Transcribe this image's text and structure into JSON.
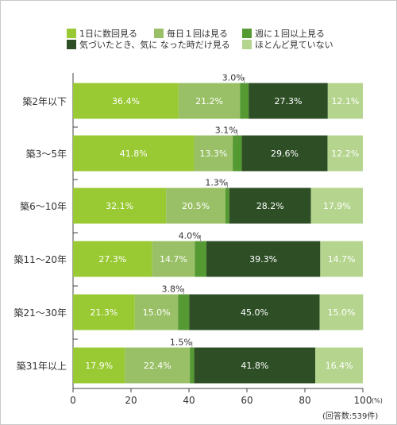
{
  "legend": [
    {
      "label": "1日に数回見る",
      "color": "#99c933"
    },
    {
      "label": "毎日１回は見る",
      "color": "#99c066"
    },
    {
      "label": "週に１回以上見る",
      "color": "#559933"
    },
    {
      "label": "気づいたとき、気に なった時だけ見る",
      "color": "#2e4f26"
    },
    {
      "label": "ほとんど見ていない",
      "color": "#b5d58e"
    }
  ],
  "note": "(回答数:539件)",
  "chart_data": {
    "type": "bar",
    "orientation": "horizontal",
    "stacked": true,
    "categories": [
      "築2年以下",
      "築3～5年",
      "築6～10年",
      "築11～20年",
      "築21～30年",
      "築31年以上"
    ],
    "series": [
      {
        "name": "1日に数回見る",
        "color": "#99c933",
        "values": [
          36.4,
          41.8,
          32.1,
          27.3,
          21.3,
          17.9
        ]
      },
      {
        "name": "毎日１回は見る",
        "color": "#99c066",
        "values": [
          21.2,
          13.3,
          20.5,
          14.7,
          15.0,
          22.4
        ]
      },
      {
        "name": "週に１回以上見る",
        "color": "#559933",
        "values": [
          3.0,
          3.1,
          1.3,
          4.0,
          3.8,
          1.5
        ]
      },
      {
        "name": "気づいたとき、気に なった時だけ見る",
        "color": "#2e4f26",
        "values": [
          27.3,
          29.6,
          28.2,
          39.3,
          45.0,
          41.8
        ]
      },
      {
        "name": "ほとんど見ていない",
        "color": "#b5d58e",
        "values": [
          12.1,
          12.2,
          17.9,
          14.7,
          15.0,
          16.4
        ]
      }
    ],
    "xlim": [
      0,
      100
    ],
    "xticks": [
      "0",
      "20",
      "40",
      "60",
      "80",
      "100"
    ],
    "xunit": "(%)",
    "grid": false,
    "legend_position": "top"
  }
}
